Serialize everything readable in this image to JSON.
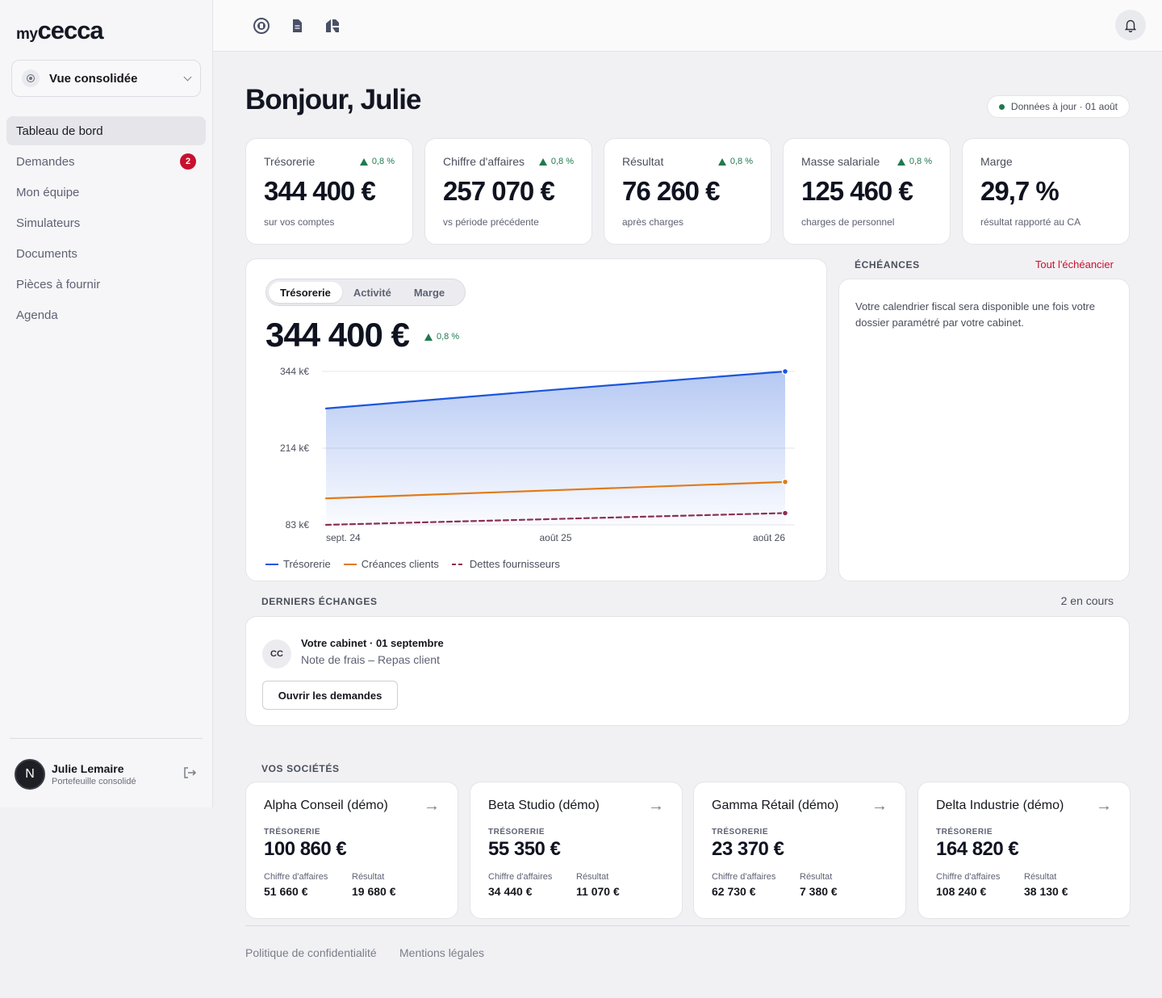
{
  "brand": {
    "prefix": "my",
    "name": "cecca"
  },
  "sidebar": {
    "scope_label": "Vue consolidée",
    "items": [
      {
        "label": "Tableau de bord",
        "active": true
      },
      {
        "label": "Demandes",
        "badge": "2"
      },
      {
        "label": "Mon équipe"
      },
      {
        "label": "Simulateurs"
      },
      {
        "label": "Documents"
      },
      {
        "label": "Pièces à fournir"
      },
      {
        "label": "Agenda"
      }
    ],
    "user": {
      "initial": "N",
      "name": "Julie Lemaire",
      "subtitle": "Portefeuille consolidé"
    }
  },
  "topbar": {
    "icons": [
      "circle-toggle-icon",
      "document-icon",
      "app-logo-icon",
      "bell-icon"
    ]
  },
  "header": {
    "greeting": "Bonjour, Julie",
    "status": "Données à jour · 01 août"
  },
  "kpis": [
    {
      "label": "Trésorerie",
      "delta": "0,8 %",
      "value": "344 400 €",
      "sub": "sur vos comptes"
    },
    {
      "label": "Chiffre d'affaires",
      "delta": "0,8 %",
      "value": "257 070 €",
      "sub": "vs période précédente"
    },
    {
      "label": "Résultat",
      "delta": "0,8 %",
      "value": "76 260 €",
      "sub": "après charges"
    },
    {
      "label": "Masse salariale",
      "delta": "0,8 %",
      "value": "125 460 €",
      "sub": "charges de personnel"
    },
    {
      "label": "Marge",
      "delta": "",
      "value": "29,7 %",
      "sub": "résultat rapporté au CA"
    }
  ],
  "chart_panel": {
    "tabs": [
      "Trésorerie",
      "Activité",
      "Marge"
    ],
    "active_tab": "Trésorerie",
    "value": "344 400 €",
    "delta": "0,8 %"
  },
  "chart_data": {
    "type": "line",
    "x": [
      "sept. 24",
      "août 25",
      "août 26"
    ],
    "y_ticks": [
      "344 k€",
      "214 k€",
      "83 k€"
    ],
    "ylim": [
      83,
      344
    ],
    "series": [
      {
        "name": "Trésorerie",
        "color": "#1a56db",
        "values": [
          281,
          313,
          344
        ],
        "filled": true,
        "dashed": false
      },
      {
        "name": "Créances clients",
        "color": "#e07b1a",
        "values": [
          128,
          142,
          156
        ],
        "filled": false,
        "dashed": false
      },
      {
        "name": "Dettes fournisseurs",
        "color": "#8b2f54",
        "values": [
          83,
          93,
          103
        ],
        "filled": false,
        "dashed": true
      }
    ],
    "grid": true,
    "legend": "bottom-left"
  },
  "echeances": {
    "title": "ÉCHÉANCES",
    "link": "Tout l'échéancier",
    "message": "Votre calendrier fiscal sera disponible une fois votre dossier paramétré par votre cabinet."
  },
  "exchanges": {
    "title": "DERNIERS ÉCHANGES",
    "count": "2 en cours",
    "item": {
      "initials": "CC",
      "title": "Votre cabinet · 01 septembre",
      "subtitle": "Note de frais – Repas client"
    },
    "button": "Ouvrir les demandes"
  },
  "companies": {
    "title": "VOS SOCIÉTÉS",
    "treasury_label": "TRÉSORERIE",
    "revenue_label": "Chiffre d'affaires",
    "result_label": "Résultat",
    "arrow": "→",
    "items": [
      {
        "name": "Alpha Conseil (démo)",
        "treasury": "100 860 €",
        "revenue": "51 660 €",
        "result": "19 680 €"
      },
      {
        "name": "Beta Studio (démo)",
        "treasury": "55 350 €",
        "revenue": "34 440 €",
        "result": "11 070 €"
      },
      {
        "name": "Gamma Rétail (démo)",
        "treasury": "23 370 €",
        "revenue": "62 730 €",
        "result": "7 380 €"
      },
      {
        "name": "Delta Industrie (démo)",
        "treasury": "164 820 €",
        "revenue": "108 240 €",
        "result": "38 130 €"
      }
    ]
  },
  "footer": {
    "links": [
      "Politique de confidentialité",
      "Mentions légales"
    ]
  },
  "colors": {
    "accent_red": "#c8102e",
    "positive": "#1f7a4d",
    "primary": "#1a56db"
  }
}
